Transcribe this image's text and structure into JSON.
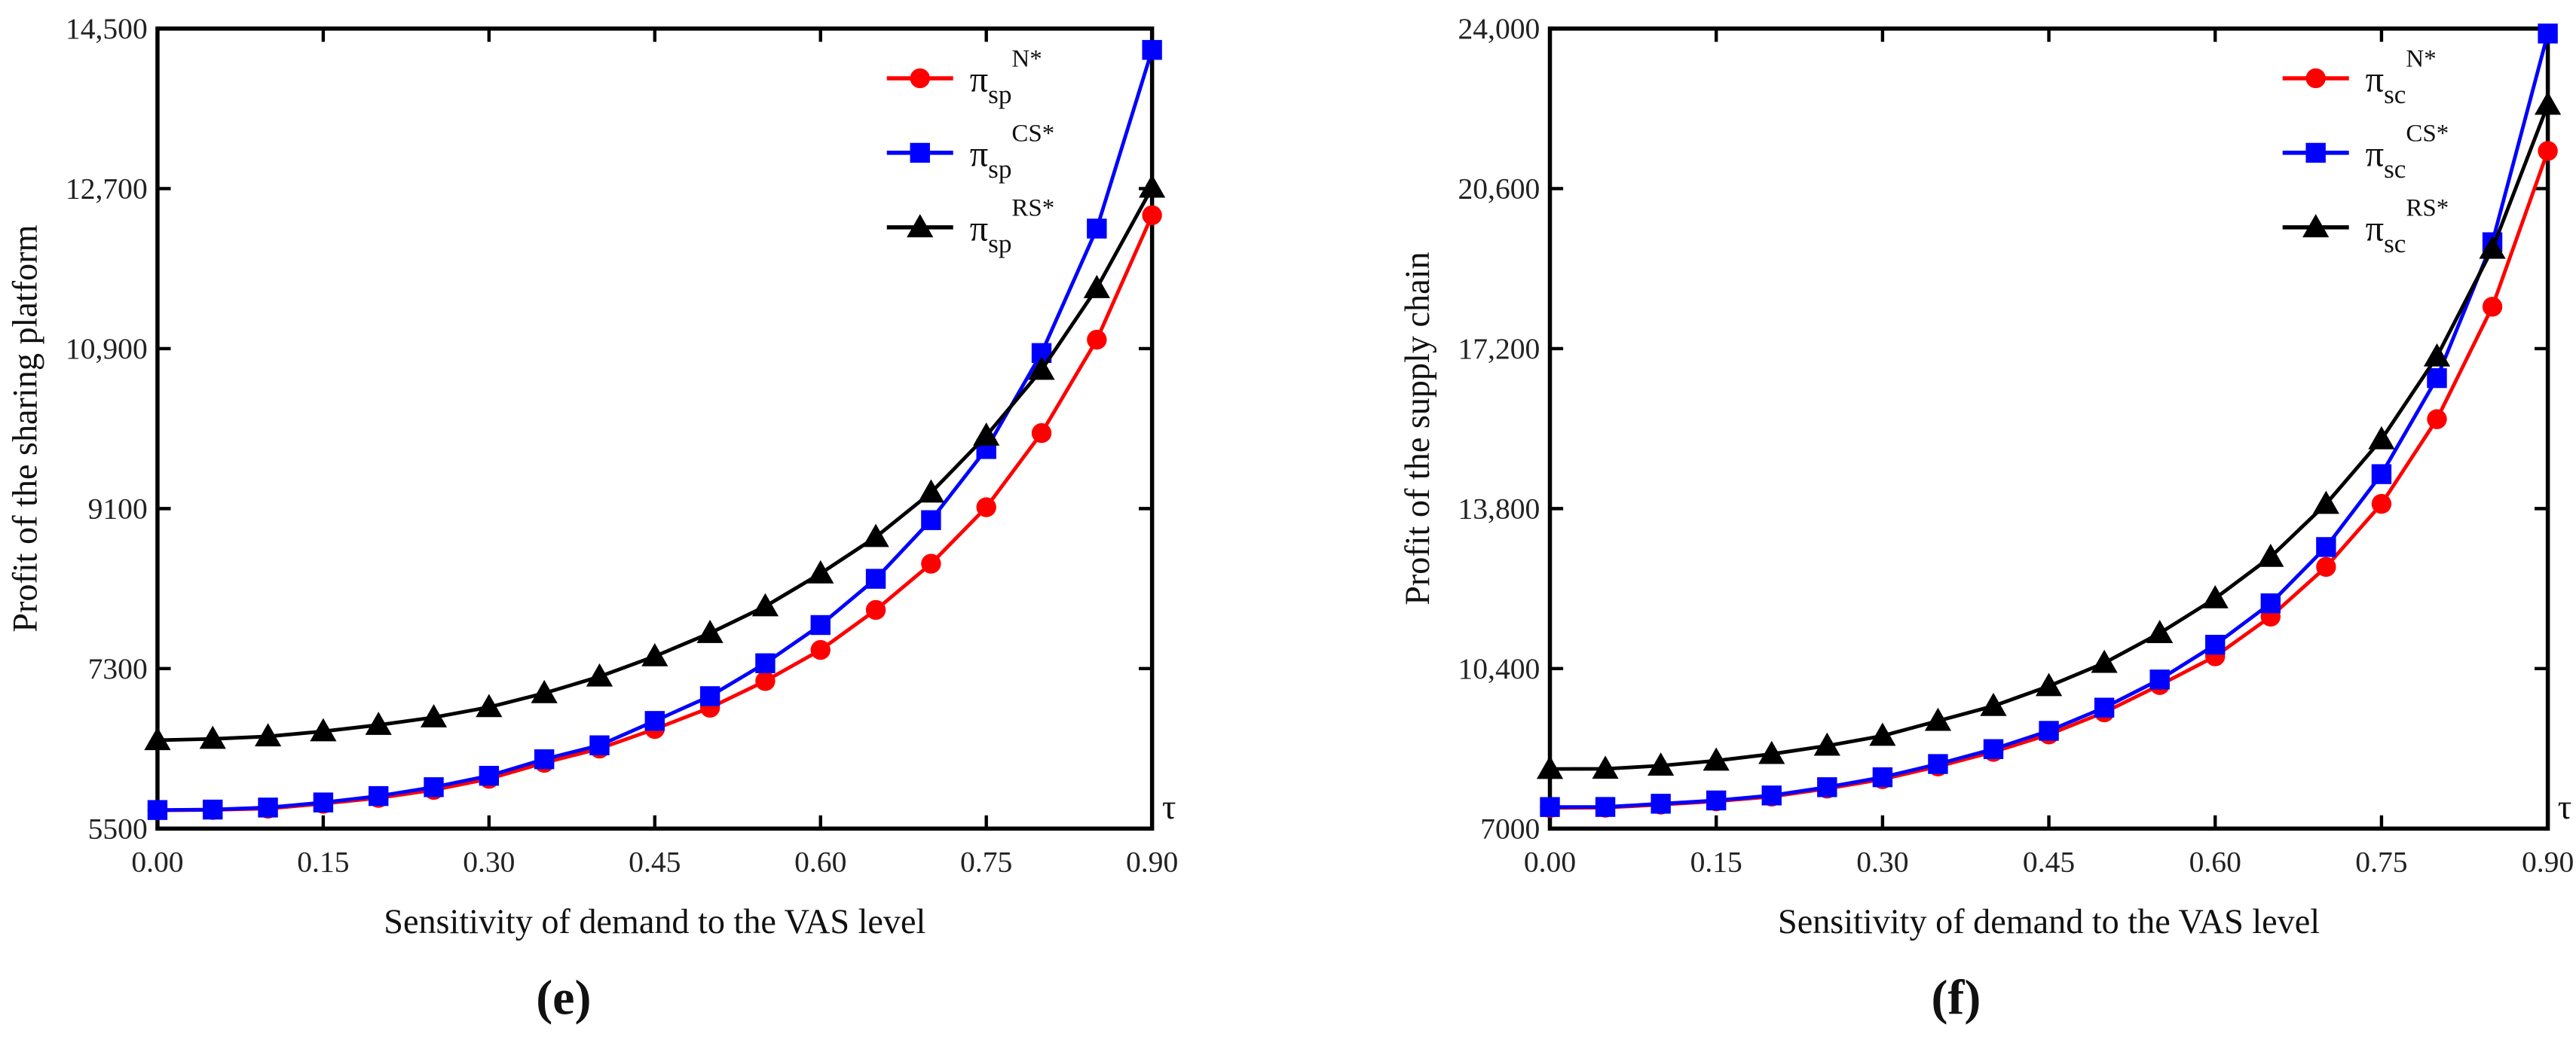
{
  "chart_data": [
    {
      "type": "line",
      "caption": "(e)",
      "xlabel": "Sensitivity of demand to the VAS level",
      "ylabel": "Profit of the sharing platform",
      "x_symbol": "τ",
      "xlim": [
        0,
        0.9
      ],
      "ylim": [
        5500,
        14500
      ],
      "xticks": [
        "0.00",
        "0.15",
        "0.30",
        "0.45",
        "0.60",
        "0.75",
        "0.90"
      ],
      "yticks": [
        "5500",
        "7300",
        "9100",
        "10,900",
        "12,700",
        "14,500"
      ],
      "ytick_values": [
        5500,
        7300,
        9100,
        10900,
        12700,
        14500
      ],
      "xtick_values": [
        0,
        0.15,
        0.3,
        0.45,
        0.6,
        0.75,
        0.9
      ],
      "grid": false,
      "legend_position": "top-right",
      "x": [
        0,
        0.05,
        0.1,
        0.15,
        0.2,
        0.25,
        0.3,
        0.35,
        0.4,
        0.45,
        0.5,
        0.55,
        0.6,
        0.65,
        0.7,
        0.75,
        0.8,
        0.85,
        0.9
      ],
      "series": [
        {
          "name": "π_sp^N*",
          "base": "π",
          "sub": "sp",
          "sup": "N*",
          "color": "#ff0000",
          "marker": "circle",
          "values": [
            5705,
            5710,
            5725,
            5780,
            5845,
            5935,
            6060,
            6240,
            6400,
            6620,
            6860,
            7160,
            7510,
            7960,
            8480,
            9115,
            9950,
            11000,
            12400
          ]
        },
        {
          "name": "π_sp^CS*",
          "base": "π",
          "sub": "sp",
          "sup": "CS*",
          "color": "#0000ff",
          "marker": "square",
          "values": [
            5709,
            5714,
            5737,
            5794,
            5866,
            5966,
            6094,
            6280,
            6437,
            6711,
            6990,
            7360,
            7790,
            8310,
            8970,
            9770,
            10850,
            12250,
            14260
          ]
        },
        {
          "name": "π_sp^RS*",
          "base": "π",
          "sub": "sp",
          "sup": "RS*",
          "color": "#000000",
          "marker": "triangle",
          "values": [
            6494,
            6509,
            6537,
            6594,
            6666,
            6751,
            6866,
            7023,
            7210,
            7438,
            7700,
            8000,
            8370,
            8780,
            9280,
            9920,
            10660,
            11580,
            12710
          ]
        }
      ]
    },
    {
      "type": "line",
      "caption": "(f)",
      "xlabel": "Sensitivity of demand to the VAS level",
      "ylabel": "Profit of the supply chain",
      "x_symbol": "τ",
      "xlim": [
        0,
        0.9
      ],
      "ylim": [
        7000,
        24000
      ],
      "xticks": [
        "0.00",
        "0.15",
        "0.30",
        "0.45",
        "0.60",
        "0.75",
        "0.90"
      ],
      "yticks": [
        "7000",
        "10,400",
        "13,800",
        "17,200",
        "20,600",
        "24,000"
      ],
      "ytick_values": [
        7000,
        10400,
        13800,
        17200,
        20600,
        24000
      ],
      "xtick_values": [
        0,
        0.15,
        0.3,
        0.45,
        0.6,
        0.75,
        0.9
      ],
      "grid": false,
      "legend_position": "top-right",
      "x": [
        0,
        0.05,
        0.1,
        0.15,
        0.2,
        0.25,
        0.3,
        0.35,
        0.4,
        0.45,
        0.5,
        0.55,
        0.6,
        0.65,
        0.7,
        0.75,
        0.8,
        0.85,
        0.9
      ],
      "series": [
        {
          "name": "π_sc^N*",
          "base": "π",
          "sub": "sc",
          "sup": "N*",
          "color": "#ff0000",
          "marker": "circle",
          "values": [
            7440,
            7445,
            7510,
            7580,
            7680,
            7850,
            8050,
            8320,
            8630,
            9000,
            9470,
            10050,
            10660,
            11505,
            12560,
            13900,
            15700,
            18090,
            21400
          ]
        },
        {
          "name": "π_sc^CS*",
          "base": "π",
          "sub": "sc",
          "sup": "CS*",
          "color": "#0000ff",
          "marker": "square",
          "values": [
            7458,
            7460,
            7528,
            7598,
            7704,
            7880,
            8091,
            8372,
            8689,
            9077,
            9570,
            10168,
            10907,
            11787,
            12983,
            14532,
            16573,
            19460,
            23895
          ]
        },
        {
          "name": "π_sc^RS*",
          "base": "π",
          "sub": "sc",
          "sup": "RS*",
          "color": "#000000",
          "marker": "triangle",
          "values": [
            8267,
            8270,
            8337,
            8443,
            8584,
            8760,
            8971,
            9288,
            9605,
            10027,
            10520,
            11153,
            11892,
            12772,
            13899,
            15271,
            17031,
            19319,
            22381
          ]
        }
      ]
    }
  ]
}
